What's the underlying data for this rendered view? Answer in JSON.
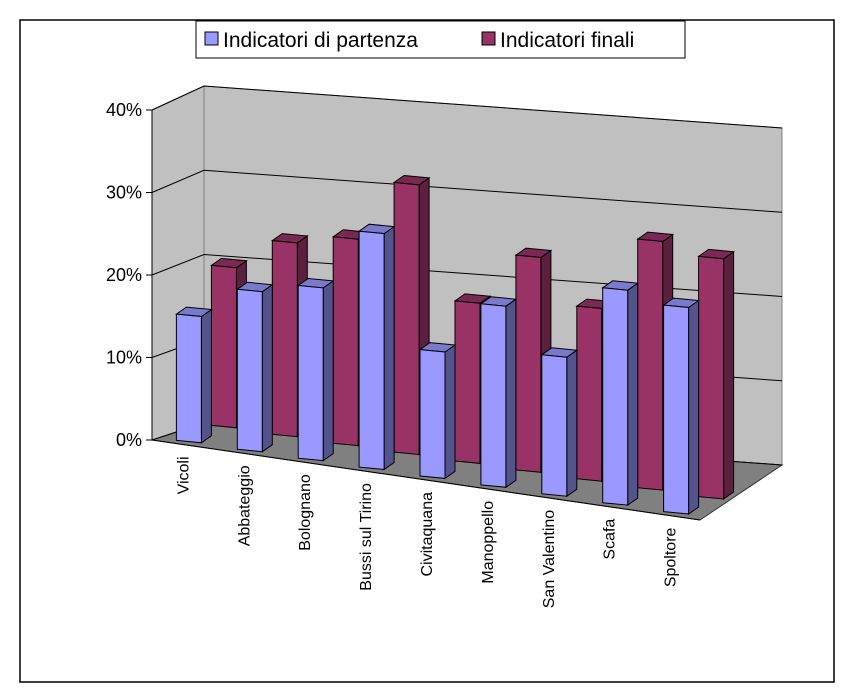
{
  "chart_data": {
    "type": "bar",
    "title": "",
    "xlabel": "",
    "ylabel": "",
    "ylim": [
      0,
      0.4
    ],
    "yticks": [
      0,
      0.1,
      0.2,
      0.3,
      0.4
    ],
    "ytick_labels": [
      "0%",
      "10%",
      "20%",
      "30%",
      "40%"
    ],
    "grid": true,
    "legend_position": "top",
    "categories": [
      "Vicoli",
      "Abbateggio",
      "Bolognano",
      "Bussi sul Tirino",
      "Civitaquana",
      "Manoppello",
      "San Valentino",
      "Scafa",
      "Spoltore"
    ],
    "series": [
      {
        "name": "Indicatori di partenza",
        "values": [
          0.15,
          0.19,
          0.205,
          0.28,
          0.15,
          0.215,
          0.165,
          0.255,
          0.245
        ],
        "color": "#9999ff"
      },
      {
        "name": "Indicatori finali",
        "values": [
          0.19,
          0.23,
          0.245,
          0.32,
          0.19,
          0.255,
          0.205,
          0.295,
          0.285
        ],
        "color": "#993366"
      }
    ]
  }
}
